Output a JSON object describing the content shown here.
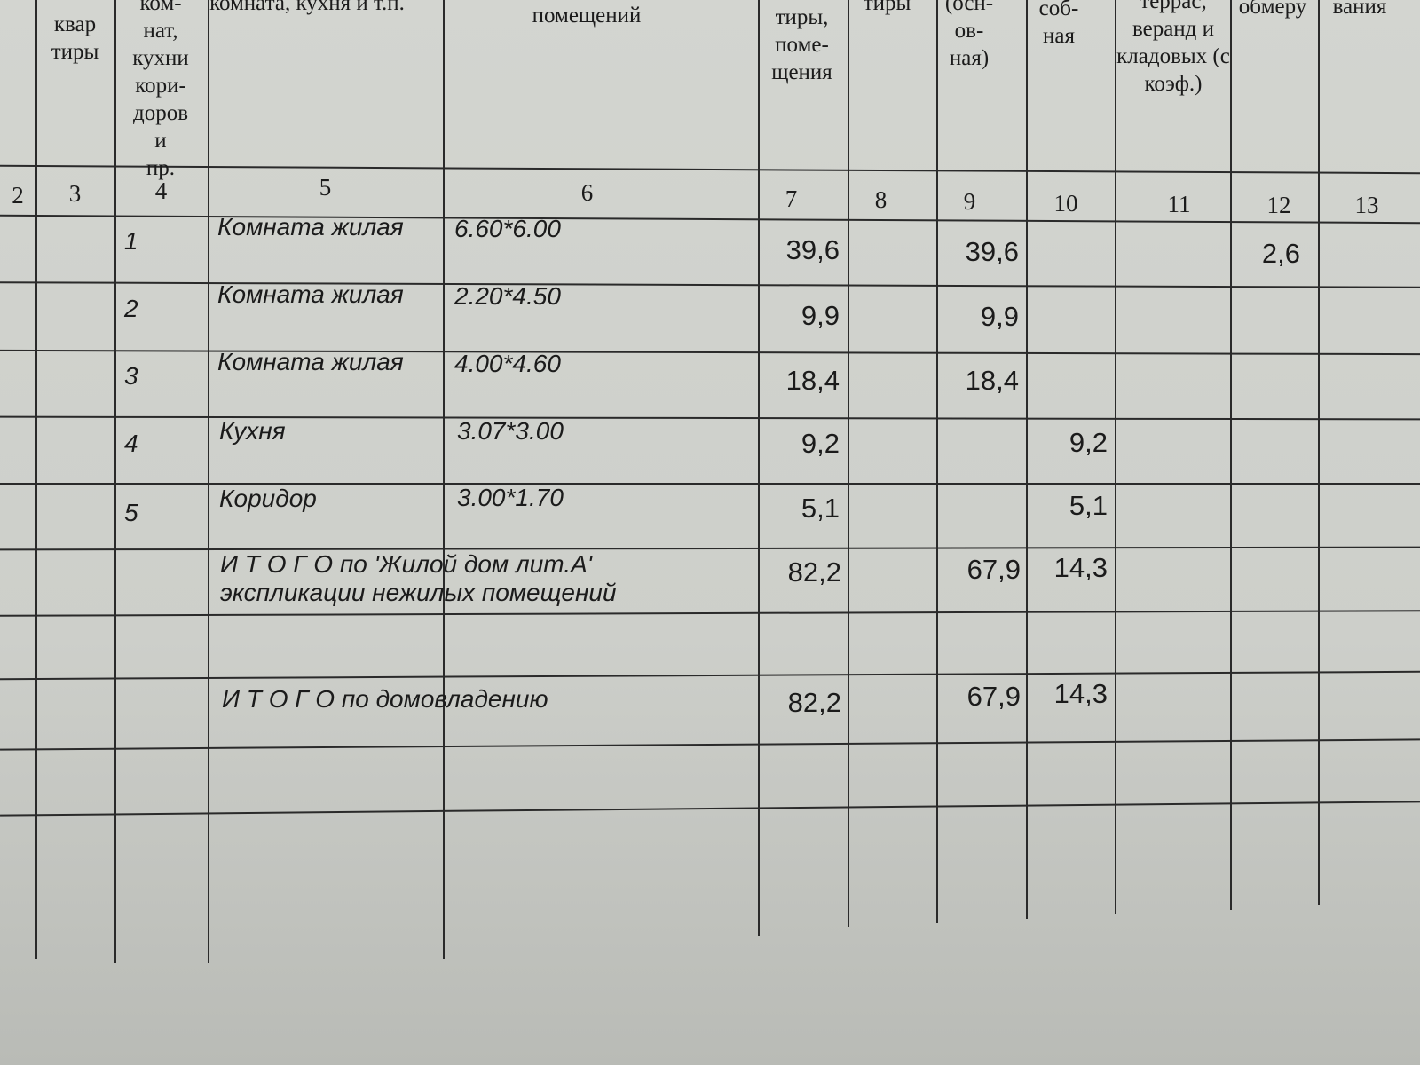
{
  "header": {
    "c3": "квар тиры",
    "c4": "ком- нат, кухни кори- доров и пр.",
    "c5": "комната, кухня и т.п.",
    "c6": "помещений",
    "c7": "тиры, поме- щения",
    "c8": "тиры",
    "c9": "(осн- ов- ная)",
    "c10": "соб- ная",
    "c11": "террас, веранд и кладовых (с коэф.)",
    "c12": "обмеру",
    "c13": "вания"
  },
  "column_numbers": [
    "2",
    "3",
    "4",
    "5",
    "6",
    "7",
    "8",
    "9",
    "10",
    "11",
    "12",
    "13"
  ],
  "rows": [
    {
      "num": "1",
      "name": "Комната жилая",
      "dims": "6.60*6.00",
      "total": "39,6",
      "living": "39,6",
      "aux": "",
      "extra": "2,6"
    },
    {
      "num": "2",
      "name": "Комната жилая",
      "dims": "2.20*4.50",
      "total": "9,9",
      "living": "9,9",
      "aux": "",
      "extra": ""
    },
    {
      "num": "3",
      "name": "Комната жилая",
      "dims": "4.00*4.60",
      "total": "18,4",
      "living": "18,4",
      "aux": "",
      "extra": ""
    },
    {
      "num": "4",
      "name": "Кухня",
      "dims": "3.07*3.00",
      "total": "9,2",
      "living": "",
      "aux": "9,2",
      "extra": ""
    },
    {
      "num": "5",
      "name": "Коридор",
      "dims": "3.00*1.70",
      "total": "5,1",
      "living": "",
      "aux": "5,1",
      "extra": ""
    }
  ],
  "totals": [
    {
      "label1": "И Т О Г О по 'Жилой дом лит.А'",
      "label2": "экспликации нежилых помещений",
      "total": "82,2",
      "living": "67,9",
      "aux": "14,3"
    },
    {
      "label1": "И Т О Г О по домовладению",
      "total": "82,2",
      "living": "67,9",
      "aux": "14,3"
    }
  ]
}
